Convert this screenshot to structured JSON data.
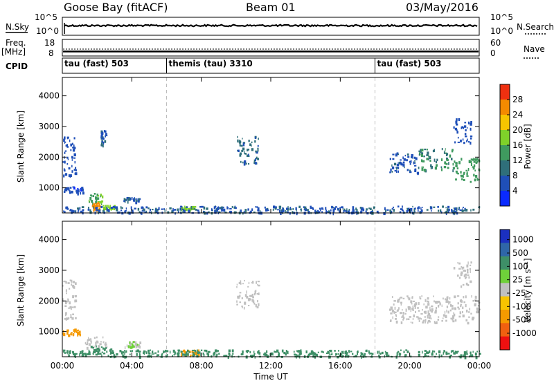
{
  "header": {
    "station": "Goose Bay (fitACF)",
    "beam": "Beam 01",
    "date": "03/May/2016"
  },
  "nsky": {
    "left_label": "N.Sky",
    "right_label": "N.Search",
    "ticks_left": [
      "10^5",
      "10^0"
    ],
    "ticks_right": [
      "10^5",
      "10^0"
    ]
  },
  "freq": {
    "left_label_1": "Freq.",
    "left_label_2": "[MHz]",
    "right_label": "Nave",
    "ticks_left": [
      "18",
      "8"
    ],
    "ticks_right": [
      "60",
      "0"
    ]
  },
  "cpid": {
    "label": "CPID",
    "segments": [
      {
        "text": "tau (fast) 503",
        "start_hour": 0
      },
      {
        "text": "themis (tau) 3310",
        "start_hour": 6
      },
      {
        "text": "tau (fast) 503",
        "start_hour": 18
      }
    ]
  },
  "x_axis": {
    "label": "Time UT",
    "ticks": [
      "00:00",
      "04:00",
      "08:00",
      "12:00",
      "16:00",
      "20:00",
      "00:00"
    ],
    "tick_hours": [
      0,
      4,
      8,
      12,
      16,
      20,
      24
    ]
  },
  "y_axis": {
    "label": "Slant Range [km]",
    "ticks": [
      "1000",
      "2000",
      "3000",
      "4000"
    ],
    "tick_values": [
      1000,
      2000,
      3000,
      4000
    ]
  },
  "power_colorbar": {
    "label": "Power [dB]",
    "ticks": [
      "4",
      "8",
      "12",
      "16",
      "20",
      "24",
      "28"
    ],
    "colors": [
      "#0a2aff",
      "#1f4fb8",
      "#2f6f7a",
      "#3f9a5f",
      "#7fd12a",
      "#f7c500",
      "#f48a00",
      "#ef3010"
    ]
  },
  "velocity_colorbar": {
    "label": "Velocity [m s⁻¹]",
    "ticks": [
      "1000",
      "500",
      "100",
      "25",
      "-25",
      "-100",
      "-500",
      "-1000"
    ],
    "colors": [
      "#1b30c0",
      "#2f66a8",
      "#3e8f67",
      "#6fd03a",
      "#c0c0c0",
      "#f7c400",
      "#f59a00",
      "#f06010",
      "#ee1010"
    ]
  },
  "chart_data": [
    {
      "type": "heatmap",
      "title": "Power",
      "xlabel": "Time UT",
      "ylabel": "Slant Range [km]",
      "xlim": [
        0,
        24
      ],
      "ylim": [
        180,
        4600
      ],
      "colorbar_label": "Power [dB]",
      "colorbar_range": [
        0,
        32
      ],
      "patches": [
        {
          "t0": 0.0,
          "t1": 0.8,
          "r0": 1400,
          "r1": 2700,
          "value": 6
        },
        {
          "t0": 0.0,
          "t1": 1.2,
          "r0": 850,
          "r1": 1050,
          "value": 5
        },
        {
          "t0": 1.5,
          "t1": 2.3,
          "r0": 500,
          "r1": 850,
          "value": 16
        },
        {
          "t0": 1.7,
          "t1": 2.1,
          "r0": 300,
          "r1": 550,
          "value": 26
        },
        {
          "t0": 2.3,
          "t1": 3.0,
          "r0": 300,
          "r1": 450,
          "value": 18
        },
        {
          "t0": 2.2,
          "t1": 2.5,
          "r0": 2400,
          "r1": 2900,
          "value": 8
        },
        {
          "t0": 3.5,
          "t1": 4.5,
          "r0": 550,
          "r1": 700,
          "value": 8
        },
        {
          "t0": 6.8,
          "t1": 7.6,
          "r0": 300,
          "r1": 420,
          "value": 18
        },
        {
          "t0": 10.0,
          "t1": 11.3,
          "r0": 1800,
          "r1": 2700,
          "value": 9
        },
        {
          "t0": 18.8,
          "t1": 20.5,
          "r0": 1500,
          "r1": 2200,
          "value": 7
        },
        {
          "t0": 20.5,
          "t1": 22.5,
          "r0": 1600,
          "r1": 2300,
          "value": 12
        },
        {
          "t0": 22.5,
          "t1": 24.0,
          "r0": 1200,
          "r1": 2000,
          "value": 14
        },
        {
          "t0": 22.5,
          "t1": 23.5,
          "r0": 2500,
          "r1": 3300,
          "value": 6
        },
        {
          "t0": 0.0,
          "t1": 24.0,
          "r0": 200,
          "r1": 420,
          "value": 7
        }
      ]
    },
    {
      "type": "heatmap",
      "title": "Velocity",
      "xlabel": "Time UT",
      "ylabel": "Slant Range [km]",
      "xlim": [
        0,
        24
      ],
      "ylim": [
        180,
        4600
      ],
      "colorbar_label": "Velocity [m s⁻¹]",
      "colorbar_range": [
        -1000,
        1000
      ],
      "patches": [
        {
          "t0": 0.0,
          "t1": 0.8,
          "r0": 1400,
          "r1": 2700,
          "value": 0
        },
        {
          "t0": 0.0,
          "t1": 1.0,
          "r0": 900,
          "r1": 1100,
          "value": -100
        },
        {
          "t0": 1.3,
          "t1": 2.5,
          "r0": 500,
          "r1": 850,
          "value": 0
        },
        {
          "t0": 1.5,
          "t1": 2.8,
          "r0": 300,
          "r1": 550,
          "value": 100
        },
        {
          "t0": 3.5,
          "t1": 4.5,
          "r0": 500,
          "r1": 700,
          "value": 25
        },
        {
          "t0": 6.8,
          "t1": 7.8,
          "r0": 250,
          "r1": 420,
          "value": -100
        },
        {
          "t0": 10.0,
          "t1": 11.3,
          "r0": 1800,
          "r1": 2700,
          "value": 0
        },
        {
          "t0": 18.8,
          "t1": 24.0,
          "r0": 1300,
          "r1": 2200,
          "value": 0
        },
        {
          "t0": 22.5,
          "t1": 23.5,
          "r0": 2500,
          "r1": 3300,
          "value": 0
        },
        {
          "t0": 0.0,
          "t1": 24.0,
          "r0": 200,
          "r1": 420,
          "value": 100
        }
      ]
    }
  ]
}
